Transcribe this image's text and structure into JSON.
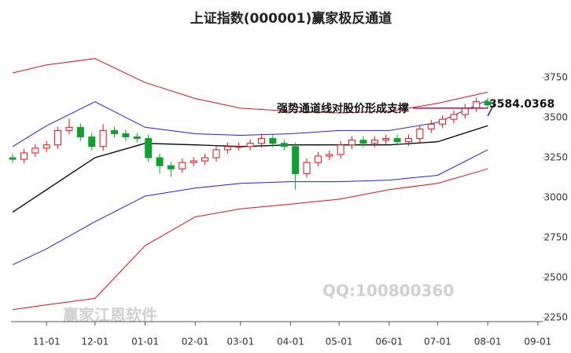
{
  "chart_data": {
    "type": "candlestick",
    "title": "上证指数(000001)赢家极反通道",
    "watermarks": [
      "赢家江恩软件",
      "QQ:100800360"
    ],
    "annotation": {
      "text": "强势通道线对股价形成支撑",
      "value_label": "3584.0368",
      "value": 3584.0368,
      "line_y": 3560,
      "color": "#cc0066"
    },
    "xlim": [
      -22,
      307
    ],
    "ylim": [
      2225,
      4040
    ],
    "xticks": [
      {
        "value": 0,
        "label": "11-01"
      },
      {
        "value": 30,
        "label": "12-01"
      },
      {
        "value": 61,
        "label": "01-01"
      },
      {
        "value": 92,
        "label": "02-01"
      },
      {
        "value": 120,
        "label": "03-01"
      },
      {
        "value": 151,
        "label": "04-01"
      },
      {
        "value": 181,
        "label": "05-01"
      },
      {
        "value": 212,
        "label": "06-01"
      },
      {
        "value": 242,
        "label": "07-01"
      },
      {
        "value": 273,
        "label": "08-01"
      },
      {
        "value": 304,
        "label": "09-01"
      }
    ],
    "yticks": [
      2250,
      2500,
      2750,
      3000,
      3250,
      3500,
      3750
    ],
    "candles": {
      "up_color": "#e01010",
      "down_color": "#10a030",
      "x": [
        -21,
        -14,
        -7,
        0,
        7,
        14,
        21,
        28,
        35,
        42,
        49,
        56,
        63,
        70,
        77,
        84,
        91,
        98,
        105,
        112,
        119,
        126,
        133,
        140,
        147,
        154,
        161,
        168,
        175,
        182,
        189,
        196,
        203,
        210,
        217,
        224,
        231,
        238,
        245,
        252,
        259,
        266,
        273
      ],
      "open": [
        3250,
        3240,
        3280,
        3310,
        3330,
        3420,
        3440,
        3380,
        3320,
        3420,
        3400,
        3380,
        3370,
        3250,
        3200,
        3180,
        3220,
        3230,
        3250,
        3300,
        3320,
        3320,
        3340,
        3370,
        3340,
        3320,
        3150,
        3220,
        3260,
        3270,
        3330,
        3360,
        3340,
        3360,
        3370,
        3350,
        3370,
        3430,
        3460,
        3490,
        3520,
        3560,
        3600
      ],
      "high": [
        3275,
        3305,
        3335,
        3355,
        3445,
        3495,
        3465,
        3405,
        3460,
        3445,
        3425,
        3405,
        3395,
        3275,
        3225,
        3245,
        3255,
        3275,
        3325,
        3345,
        3345,
        3365,
        3400,
        3395,
        3365,
        3345,
        3245,
        3285,
        3295,
        3355,
        3385,
        3385,
        3385,
        3395,
        3395,
        3395,
        3455,
        3485,
        3515,
        3545,
        3585,
        3625,
        3625
      ],
      "low": [
        3215,
        3215,
        3255,
        3285,
        3305,
        3395,
        3355,
        3295,
        3295,
        3375,
        3355,
        3345,
        3225,
        3150,
        3130,
        3155,
        3195,
        3205,
        3225,
        3275,
        3295,
        3295,
        3315,
        3315,
        3295,
        3050,
        3125,
        3195,
        3235,
        3245,
        3305,
        3315,
        3315,
        3335,
        3325,
        3325,
        3345,
        3405,
        3435,
        3465,
        3495,
        3535,
        3555
      ],
      "close": [
        3240,
        3280,
        3310,
        3330,
        3420,
        3440,
        3380,
        3320,
        3420,
        3400,
        3380,
        3370,
        3250,
        3200,
        3180,
        3220,
        3230,
        3250,
        3300,
        3320,
        3320,
        3340,
        3370,
        3340,
        3320,
        3150,
        3220,
        3260,
        3270,
        3330,
        3360,
        3340,
        3360,
        3370,
        3350,
        3370,
        3430,
        3460,
        3490,
        3520,
        3560,
        3600,
        3580
      ]
    },
    "lines": [
      {
        "color": "#e01010",
        "width": 1,
        "x": [
          -21,
          0,
          30,
          61,
          92,
          120,
          151,
          181,
          212,
          242,
          273
        ],
        "values": [
          3780,
          3830,
          3870,
          3720,
          3620,
          3560,
          3540,
          3530,
          3540,
          3590,
          3660
        ]
      },
      {
        "color": "#2020e0",
        "width": 1,
        "x": [
          -21,
          0,
          30,
          61,
          92,
          120,
          151,
          181,
          212,
          242,
          273
        ],
        "values": [
          3320,
          3450,
          3600,
          3440,
          3400,
          3390,
          3400,
          3420,
          3420,
          3470,
          3610
        ]
      },
      {
        "color": "#000000",
        "width": 1.3,
        "x": [
          -21,
          0,
          30,
          61,
          92,
          120,
          151,
          181,
          212,
          242,
          273
        ],
        "values": [
          2910,
          3050,
          3250,
          3340,
          3330,
          3320,
          3330,
          3330,
          3330,
          3350,
          3450
        ]
      },
      {
        "color": "#2020e0",
        "width": 1,
        "x": [
          -21,
          0,
          30,
          61,
          92,
          120,
          151,
          181,
          212,
          242,
          273
        ],
        "values": [
          2580,
          2680,
          2850,
          3010,
          3060,
          3090,
          3100,
          3100,
          3110,
          3140,
          3300
        ]
      },
      {
        "color": "#e01010",
        "width": 1,
        "x": [
          -21,
          0,
          30,
          61,
          92,
          120,
          151,
          181,
          212,
          242,
          273
        ],
        "values": [
          2300,
          2330,
          2370,
          2700,
          2880,
          2930,
          2960,
          2990,
          3050,
          3090,
          3180
        ]
      }
    ]
  }
}
